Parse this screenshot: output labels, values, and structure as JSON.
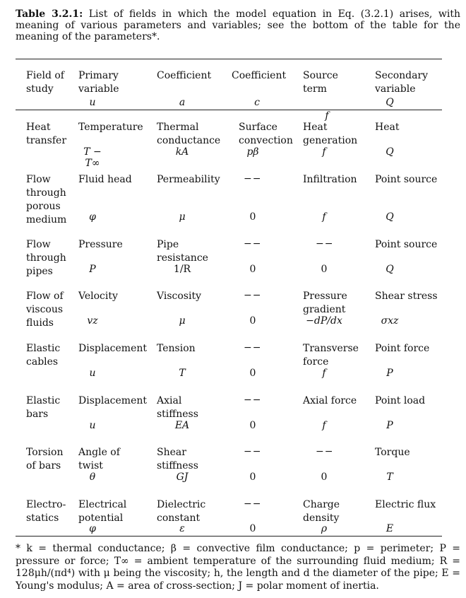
{
  "caption": {
    "label": "Table 3.2.1:",
    "text": "List of fields in which the model equation in Eq. (3.2.1) arises, with meaning of various parameters and variables; see the bottom of the table for the meaning of the parameters*."
  },
  "header": {
    "field": [
      "Field of",
      "study"
    ],
    "primary": [
      "Primary",
      "variable"
    ],
    "primary_sym": "u",
    "coef_a": "Coefficient",
    "coef_a_sym": "a",
    "coef_c": "Coefficient",
    "coef_c_sym": "c",
    "source": "Source term",
    "source_sym": "f",
    "secondary": [
      "Secondary",
      "variable"
    ],
    "secondary_sym": "Q"
  },
  "rows": [
    {
      "field": [
        "Heat",
        "transfer"
      ],
      "primary": [
        "Temperature"
      ],
      "primary_sym": "T − T∞",
      "a": [
        "Thermal",
        "conductance"
      ],
      "a_sym": "kA",
      "c": [
        "Surface",
        "convection"
      ],
      "c_sym": "pβ",
      "f": [
        "Heat",
        "generation"
      ],
      "f_sym": "f",
      "Q": [
        "Heat"
      ],
      "Q_sym": "Q"
    },
    {
      "field": [
        "Flow",
        "through",
        "porous",
        "medium"
      ],
      "primary": [
        "Fluid head"
      ],
      "primary_sym": "φ",
      "a": [
        "Permeability"
      ],
      "a_sym": "μ",
      "c": [],
      "c_dash": "−−",
      "c_sym": "0",
      "f": [
        "Infiltration"
      ],
      "f_sym": "f",
      "Q": [
        "Point source"
      ],
      "Q_sym": "Q"
    },
    {
      "field": [
        "Flow",
        "through",
        "pipes"
      ],
      "primary": [
        "Pressure"
      ],
      "primary_sym": "P",
      "a": [
        "Pipe",
        "resistance"
      ],
      "a_sym": "1/R",
      "c": [],
      "c_dash": "−−",
      "c_sym": "0",
      "f": [],
      "f_dash": "−−",
      "f_sym": "0",
      "Q": [
        "Point source"
      ],
      "Q_sym": "Q"
    },
    {
      "field": [
        "Flow of",
        "viscous",
        "fluids"
      ],
      "primary": [
        "Velocity"
      ],
      "primary_sym": "vz",
      "a": [
        "Viscosity"
      ],
      "a_sym": "μ",
      "c": [],
      "c_dash": "−−",
      "c_sym": "0",
      "f": [
        "Pressure",
        "gradient"
      ],
      "f_sym": "−dP/dx",
      "Q": [
        "Shear stress"
      ],
      "Q_sym": "σxz"
    },
    {
      "field": [
        "Elastic",
        "cables"
      ],
      "primary": [
        "Displacement"
      ],
      "primary_sym": "u",
      "a": [
        "Tension"
      ],
      "a_sym": "T",
      "c": [],
      "c_dash": "−−",
      "c_sym": "0",
      "f": [
        "Transverse",
        "force"
      ],
      "f_sym": "f",
      "Q": [
        "Point force"
      ],
      "Q_sym": "P"
    },
    {
      "field": [
        "Elastic",
        "bars"
      ],
      "primary": [
        "Displacement"
      ],
      "primary_sym": "u",
      "a": [
        "Axial",
        "stiffness"
      ],
      "a_sym": "EA",
      "c": [],
      "c_dash": "−−",
      "c_sym": "0",
      "f": [
        "Axial force"
      ],
      "f_sym": "f",
      "Q": [
        "Point load"
      ],
      "Q_sym": "P"
    },
    {
      "field": [
        "Torsion",
        "of bars"
      ],
      "primary": [
        "Angle of",
        "twist"
      ],
      "primary_sym": "θ",
      "a": [
        "Shear",
        "stiffness"
      ],
      "a_sym": "GJ",
      "c": [],
      "c_dash": "−−",
      "c_sym": "0",
      "f": [],
      "f_dash": "−−",
      "f_sym": "0",
      "Q": [
        "Torque"
      ],
      "Q_sym": "T"
    },
    {
      "field": [
        "Electro-",
        "statics"
      ],
      "primary": [
        "Electrical",
        "potential"
      ],
      "primary_sym": "φ",
      "a": [
        "Dielectric",
        "constant"
      ],
      "a_sym": "ε",
      "c": [],
      "c_dash": "−−",
      "c_sym": "0",
      "f": [
        "Charge",
        "density"
      ],
      "f_sym": "ρ",
      "Q": [
        "Electric flux"
      ],
      "Q_sym": "E"
    }
  ],
  "footnote": "* k = thermal conductance; β = convective film conductance; p = perimeter; P = pressure or force; T∞ = ambient temperature of the surrounding fluid medium; R = 128μh/(πd⁴) with μ being the viscosity; h, the length and d the diameter of the pipe; E = Young's modulus; A = area of cross-section; J = polar moment of inertia."
}
